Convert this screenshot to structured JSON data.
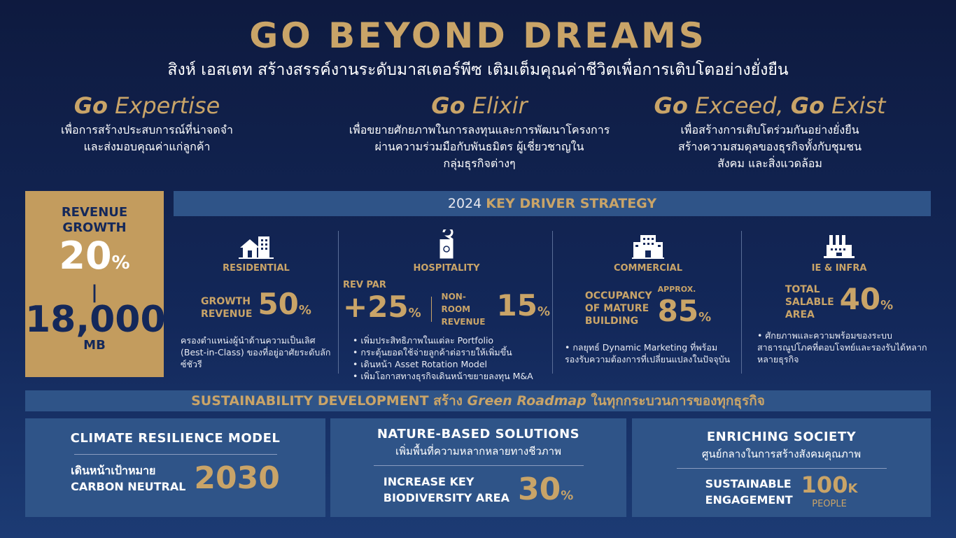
{
  "header": {
    "title": "GO BEYOND DREAMS",
    "subtitle": "สิงห์ เอสเตท สร้างสรรค์งานระดับมาสเตอร์พีซ  เติมเต็มคุณค่าชีวิตเพื่อการเติบโตอย่างยั่งยืน"
  },
  "pillars": [
    {
      "go": "Go",
      "word": " Expertise",
      "lines": [
        "เพื่อการสร้างประสบการณ์ที่น่าจดจำ",
        "และส่งมอบคุณค่าแก่ลูกค้า"
      ]
    },
    {
      "go": "Go",
      "word": " Elixir",
      "lines": [
        "เพื่อขยายศักยภาพในการลงทุนและการพัฒนาโครงการ",
        "ผ่านความร่วมมือกับพันธมิตร ผู้เชี่ยวชาญใน",
        "กลุ่มธุรกิจต่างๆ"
      ]
    },
    {
      "go": "Go",
      "word": " Exceed, ",
      "go2": "Go",
      "word2": " Exist",
      "lines": [
        "เพื่อสร้างการเติบโตร่วมกันอย่างยั่งยืน",
        "สร้างความสมดุลของธุรกิจทั้งกับชุมชน",
        "สังคม และสิ่งแวดล้อม"
      ]
    }
  ],
  "revenue": {
    "label1": "REVENUE",
    "label2": "GROWTH",
    "pct": "20",
    "pct_unit": "%",
    "sep": "|",
    "amount": "18,000",
    "unit": "MB"
  },
  "key_driver": {
    "year": "2024 ",
    "title": "KEY DRIVER STRATEGY"
  },
  "segments": {
    "residential": {
      "name": "RESIDENTIAL",
      "label1": "GROWTH",
      "label2": "REVENUE",
      "value": "50",
      "unit": "%",
      "desc": "ครองตำแหน่งผู้นำด้านความเป็นเลิศ (Best-in-Class) ของที่อยู่อาศัยระดับลักซ์ชัวรี"
    },
    "hospitality": {
      "name": "HOSPITALITY",
      "label_a": "REV PAR",
      "value_a": "+25",
      "label_b1": "NON-ROOM",
      "label_b2": "REVENUE",
      "value_b": "15",
      "unit": "%",
      "bullets": [
        "เพิ่มประสิทธิภาพในแต่ละ Portfolio",
        "กระตุ้นยอดใช้จ่ายลูกค้าต่อรายให้เพิ่มขึ้น",
        "เดินหน้า Asset Rotation Model",
        "เพิ่มโอกาสทางธุรกิจเดินหน้าขยายลงทุน M&A"
      ]
    },
    "commercial": {
      "name": "COMMERCIAL",
      "label1": "OCCUPANCY",
      "label2": "OF MATURE",
      "label3": "BUILDING",
      "approx": "APPROX.",
      "value": "85",
      "unit": "%",
      "bullets": [
        "กลยุทธ์ Dynamic Marketing ที่พร้อมรองรับความต้องการที่เปลี่ยนแปลงในปัจจุบัน"
      ]
    },
    "ie_infra": {
      "name": "IE & INFRA",
      "label1": "TOTAL",
      "label2": "SALABLE",
      "label3": "AREA",
      "value": "40",
      "unit": "%",
      "bullets": [
        "ศักยภาพและความพร้อมของระบบสาธารณูปโภคที่ตอบโจทย์และรองรับได้หลากหลายธุรกิจ"
      ]
    }
  },
  "sustainability": {
    "a": "SUSTAINABILITY DEVELOPMENT ",
    "b": "สร้าง ",
    "c": "Green Roadmap",
    "d": " ในทุกกระบวนการของทุกธุรกิจ"
  },
  "boxes": [
    {
      "title": "CLIMATE RESILIENCE MODEL",
      "label1": "เดินหน้าเป้าหมาย",
      "label2": "CARBON NEUTRAL",
      "value": "2030"
    },
    {
      "title": "NATURE-BASED SOLUTIONS",
      "subtitle": "เพิ่มพื้นที่ความหลากหลายทางชีวภาพ",
      "label1": "INCREASE KEY",
      "label2": "BIODIVERSITY AREA",
      "value": "30",
      "unit": "%"
    },
    {
      "title": "ENRICHING SOCIETY",
      "subtitle": "ศูนย์กลางในการสร้างสังคมคุณภาพ",
      "label1": "SUSTAINABLE",
      "label2": "ENGAGEMENT",
      "value": "100",
      "unit": "K",
      "unit2": "PEOPLE"
    }
  ],
  "colors": {
    "gold": "#c9a468",
    "panel": "#2f5488",
    "background": "#13285a"
  }
}
